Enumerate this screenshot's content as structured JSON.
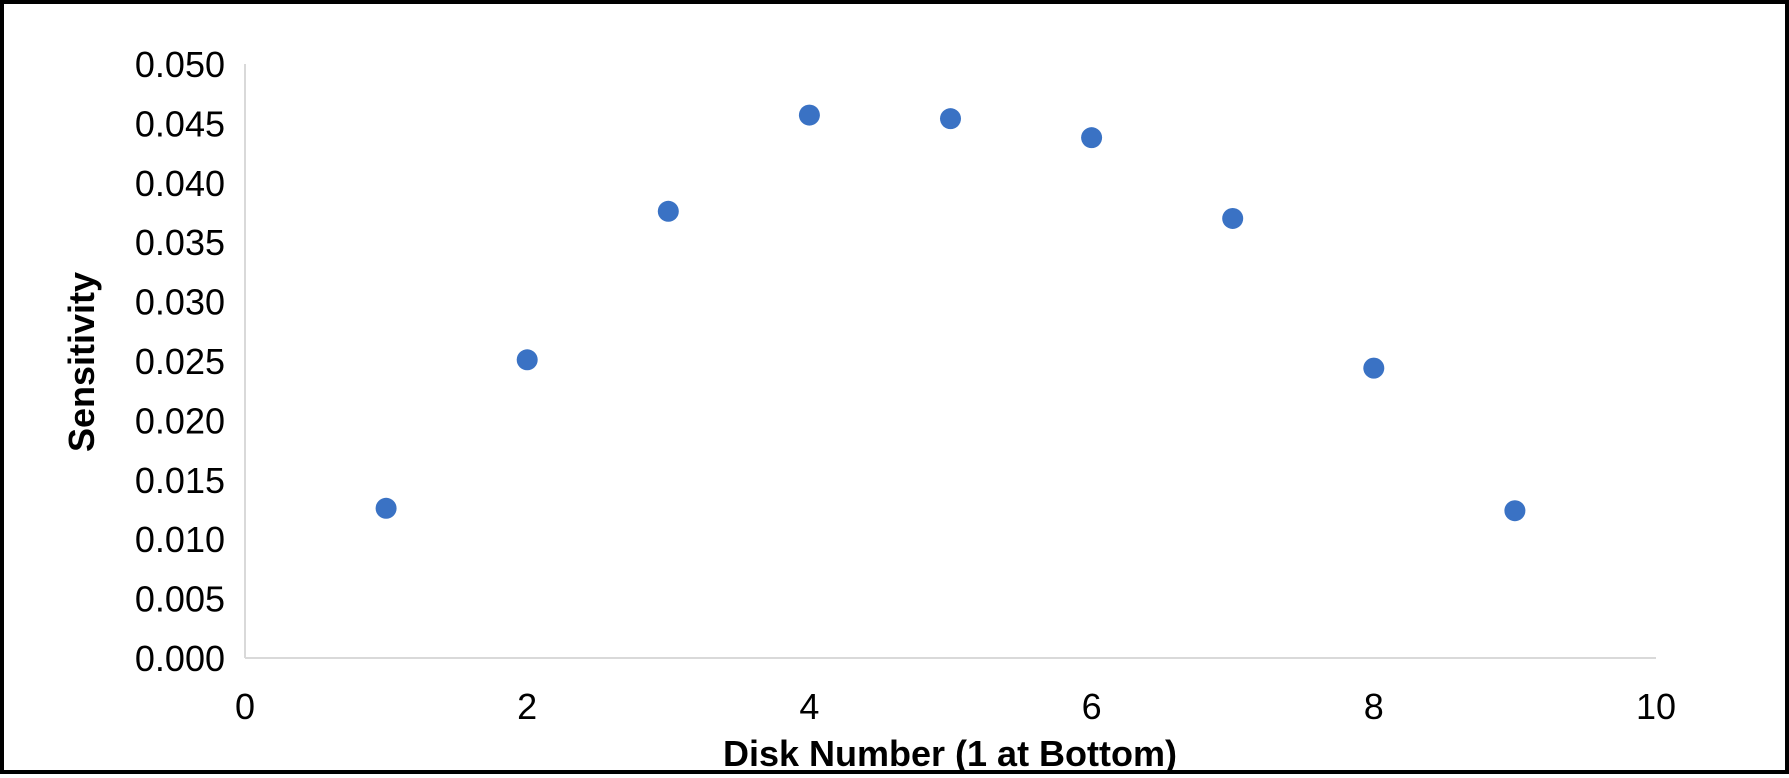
{
  "chart_data": {
    "type": "scatter",
    "title": "",
    "xlabel": "Disk Number (1 at Bottom)",
    "ylabel": "Sensitivity",
    "xlim": [
      0,
      10
    ],
    "ylim": [
      0,
      0.05
    ],
    "x_ticks": [
      "0",
      "2",
      "4",
      "6",
      "8",
      "10"
    ],
    "y_ticks": [
      "0.000",
      "0.005",
      "0.010",
      "0.015",
      "0.020",
      "0.025",
      "0.030",
      "0.035",
      "0.040",
      "0.045",
      "0.050"
    ],
    "grid": false,
    "legend": "none",
    "marker_color": "#3A72C4",
    "series": [
      {
        "x": [
          1,
          2,
          3,
          4,
          5,
          6,
          7,
          8,
          9
        ],
        "y": [
          0.0126,
          0.0251,
          0.0376,
          0.0457,
          0.0454,
          0.0438,
          0.037,
          0.0244,
          0.0124
        ]
      }
    ]
  }
}
